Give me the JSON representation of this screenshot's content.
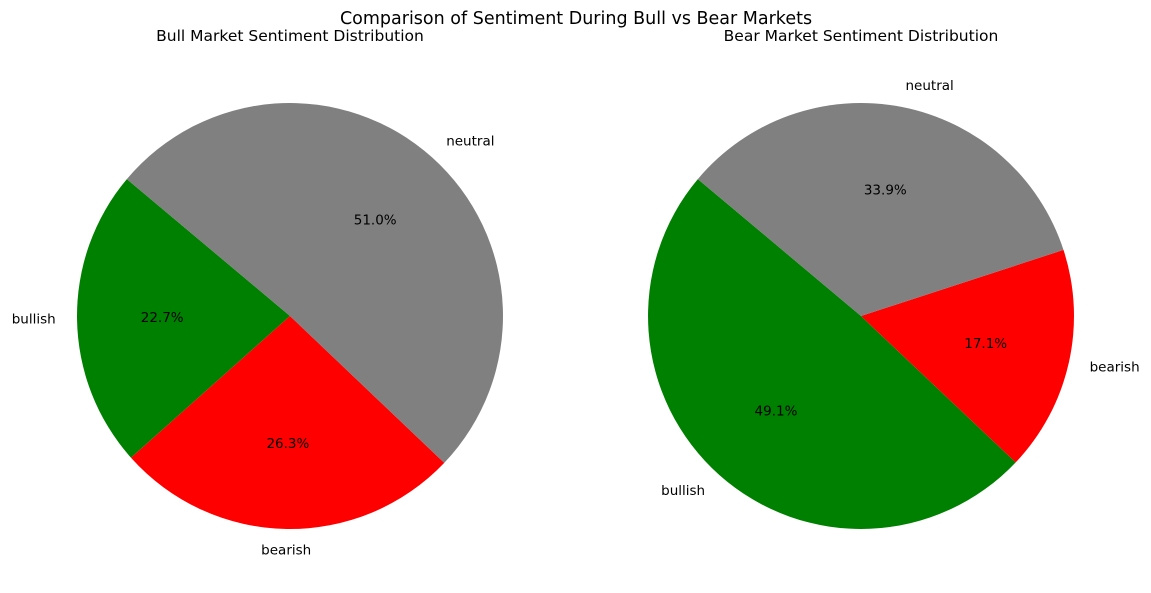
{
  "figure": {
    "suptitle": "Comparison of Sentiment During Bull vs Bear Markets"
  },
  "chart_data": [
    {
      "type": "pie",
      "title": "Bull Market Sentiment Distribution",
      "labels": [
        "bullish",
        "bearish",
        "neutral"
      ],
      "values": [
        22.7,
        26.3,
        51.0
      ],
      "value_labels": [
        "22.7%",
        "26.3%",
        "51.0%"
      ],
      "colors": [
        "#008000",
        "#ff0000",
        "#808080"
      ],
      "start_angle_deg": 140,
      "direction": "counterclockwise"
    },
    {
      "type": "pie",
      "title": "Bear Market Sentiment Distribution",
      "labels": [
        "bullish",
        "bearish",
        "neutral"
      ],
      "values": [
        49.1,
        17.1,
        33.9
      ],
      "value_labels": [
        "49.1%",
        "17.1%",
        "33.9%"
      ],
      "colors": [
        "#008000",
        "#ff0000",
        "#808080"
      ],
      "start_angle_deg": 140,
      "direction": "counterclockwise"
    }
  ]
}
